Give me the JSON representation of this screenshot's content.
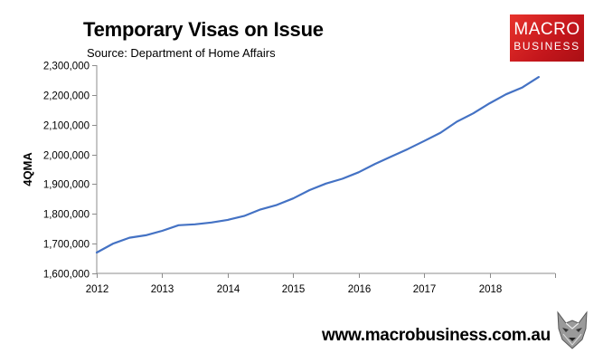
{
  "header": {
    "title": "Temporary Visas on Issue",
    "subtitle": "Source: Department of Home Affairs"
  },
  "logo": {
    "line1": "MACRO",
    "line2": "BUSINESS",
    "color": "#d4191f"
  },
  "footer": {
    "website": "www.macrobusiness.com.au",
    "mascot_icon": "wolf-head-icon"
  },
  "chart_data": {
    "type": "line",
    "title": "Temporary Visas on Issue",
    "subtitle": "Source: Department of Home Affairs",
    "xlabel": "",
    "ylabel": "4QMA",
    "xlim": [
      2012,
      2019
    ],
    "ylim": [
      1600000,
      2300000
    ],
    "x_ticks": [
      2012,
      2013,
      2014,
      2015,
      2016,
      2017,
      2018
    ],
    "y_ticks": [
      1600000,
      1700000,
      1800000,
      1900000,
      2000000,
      2100000,
      2200000,
      2300000
    ],
    "y_tick_labels": [
      "1,600,000",
      "1,700,000",
      "1,800,000",
      "1,900,000",
      "2,000,000",
      "2,100,000",
      "2,200,000",
      "2,300,000"
    ],
    "grid": false,
    "legend": "none",
    "line_color": "#4472c4",
    "series": [
      {
        "x": [
          2012.0,
          2012.25,
          2012.5,
          2012.75,
          2013.0,
          2013.25,
          2013.5,
          2013.75,
          2014.0,
          2014.25,
          2014.5,
          2014.75,
          2015.0,
          2015.25,
          2015.5,
          2015.75,
          2016.0,
          2016.25,
          2016.5,
          2016.75,
          2017.0,
          2017.25,
          2017.5,
          2017.75,
          2018.0,
          2018.25,
          2018.5,
          2018.75
        ],
        "values": [
          1670000,
          1700000,
          1720000,
          1728000,
          1743000,
          1762000,
          1765000,
          1771000,
          1780000,
          1793000,
          1815000,
          1830000,
          1852000,
          1880000,
          1902000,
          1918000,
          1940000,
          1968000,
          1993000,
          2018000,
          2045000,
          2073000,
          2110000,
          2138000,
          2172000,
          2202000,
          2225000,
          2260000
        ]
      }
    ]
  }
}
